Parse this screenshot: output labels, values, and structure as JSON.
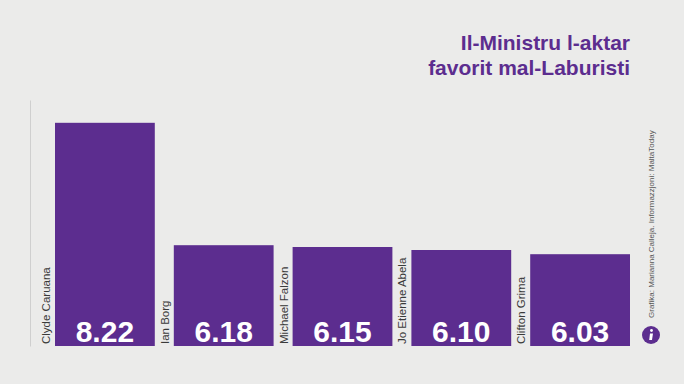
{
  "chart_data": {
    "type": "bar",
    "title": "Il-Ministru l-aktar favorit mal-Laburisti",
    "categories": [
      "Clyde Caruana",
      "Ian Borg",
      "Michael Falzon",
      "Jo Etienne Abela",
      "Clifton Grima"
    ],
    "values": [
      8.22,
      6.18,
      6.15,
      6.1,
      6.03
    ],
    "value_labels": [
      "8.22",
      "6.18",
      "6.15",
      "6.10",
      "6.03"
    ],
    "color": "#5c2d8f",
    "ylim": [
      4.5,
      8.6
    ],
    "yticks": [],
    "grid": false,
    "data_labels": true,
    "tick_labels": false,
    "annotations": [
      "Grafika: Marianna Calleja. Informazzjoni: MaltaToday"
    ]
  }
}
